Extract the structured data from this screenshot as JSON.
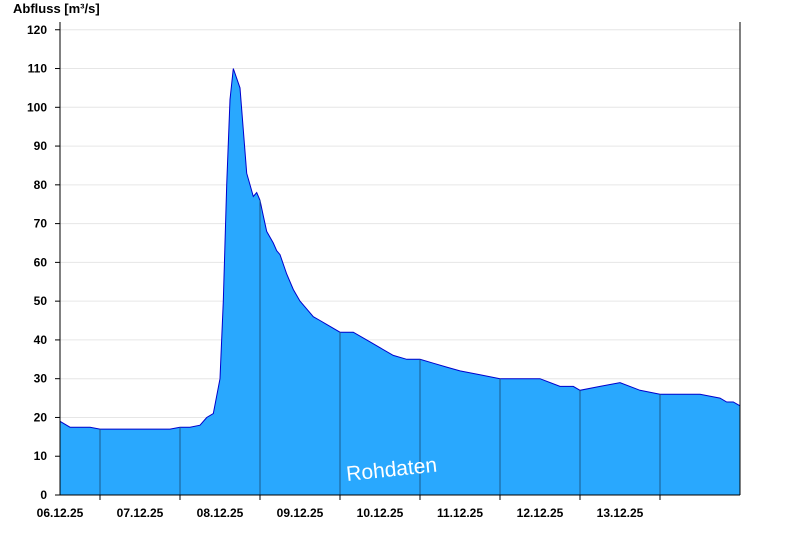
{
  "chart_data": {
    "type": "area",
    "ylabel": "Abfluss [m³/s]",
    "watermark": "Rohdaten",
    "ylim": [
      0,
      122
    ],
    "yticks": [
      0,
      10,
      20,
      30,
      40,
      50,
      60,
      70,
      80,
      90,
      100,
      110,
      120
    ],
    "xlim": [
      "05.12.25 12:00",
      "14.12.25 00:00"
    ],
    "day_boundaries": [
      "06.12.25 00:00",
      "07.12.25 00:00",
      "08.12.25 00:00",
      "09.12.25 00:00",
      "10.12.25 00:00",
      "11.12.25 00:00",
      "12.12.25 00:00",
      "13.12.25 00:00"
    ],
    "xtick_labels": [
      {
        "label": "06.12.25",
        "at": "05.12.25 12:00"
      },
      {
        "label": "07.12.25",
        "at": "06.12.25 12:00"
      },
      {
        "label": "08.12.25",
        "at": "07.12.25 12:00"
      },
      {
        "label": "09.12.25",
        "at": "08.12.25 12:00"
      },
      {
        "label": "10.12.25",
        "at": "09.12.25 12:00"
      },
      {
        "label": "11.12.25",
        "at": "10.12.25 12:00"
      },
      {
        "label": "12.12.25",
        "at": "11.12.25 12:00"
      },
      {
        "label": "13.12.25",
        "at": "12.12.25 12:00"
      }
    ],
    "grid": "horizontal",
    "colors": {
      "fill": "#29a8fe",
      "line": "#0000cc",
      "grid": "#e6e6e6",
      "axis": "#000000",
      "day_line": "#1c5a8c"
    },
    "series": [
      {
        "x": [
          "05.12.25 12:00",
          "05.12.25 15:00",
          "05.12.25 18:00",
          "05.12.25 21:00",
          "06.12.25 00:00",
          "06.12.25 03:00",
          "06.12.25 06:00",
          "06.12.25 09:00",
          "06.12.25 12:00",
          "06.12.25 15:00",
          "06.12.25 18:00",
          "06.12.25 21:00",
          "07.12.25 00:00",
          "07.12.25 03:00",
          "07.12.25 06:00",
          "07.12.25 08:00",
          "07.12.25 10:00",
          "07.12.25 12:00",
          "07.12.25 13:00",
          "07.12.25 14:00",
          "07.12.25 15:00",
          "07.12.25 16:00",
          "07.12.25 18:00",
          "07.12.25 20:00",
          "07.12.25 21:00",
          "07.12.25 22:00",
          "07.12.25 23:00",
          "08.12.25 00:00",
          "08.12.25 01:00",
          "08.12.25 02:00",
          "08.12.25 04:00",
          "08.12.25 05:00",
          "08.12.25 06:00",
          "08.12.25 08:00",
          "08.12.25 10:00",
          "08.12.25 12:00",
          "08.12.25 14:00",
          "08.12.25 16:00",
          "08.12.25 18:00",
          "08.12.25 20:00",
          "09.12.25 00:00",
          "09.12.25 04:00",
          "09.12.25 08:00",
          "09.12.25 12:00",
          "09.12.25 16:00",
          "09.12.25 20:00",
          "10.12.25 00:00",
          "10.12.25 04:00",
          "10.12.25 08:00",
          "10.12.25 12:00",
          "10.12.25 18:00",
          "11.12.25 00:00",
          "11.12.25 04:00",
          "11.12.25 08:00",
          "11.12.25 12:00",
          "11.12.25 18:00",
          "11.12.25 22:00",
          "12.12.25 00:00",
          "12.12.25 06:00",
          "12.12.25 12:00",
          "12.12.25 18:00",
          "13.12.25 00:00",
          "13.12.25 06:00",
          "13.12.25 12:00",
          "13.12.25 18:00",
          "13.12.25 20:00",
          "13.12.25 22:00",
          "14.12.25 00:00"
        ],
        "y": [
          19,
          17.5,
          17.5,
          17.5,
          17,
          17,
          17,
          17,
          17,
          17,
          17,
          17,
          17.5,
          17.5,
          18,
          20,
          21,
          30,
          50,
          80,
          102,
          110,
          105,
          83,
          80,
          77,
          78,
          76,
          72,
          68,
          65,
          63,
          62,
          57,
          53,
          50,
          48,
          46,
          45,
          44,
          42,
          42,
          40,
          38,
          36,
          35,
          35,
          34,
          33,
          32,
          31,
          30,
          30,
          30,
          30,
          28,
          28,
          27,
          28,
          29,
          27,
          26,
          26,
          26,
          25,
          24,
          24,
          23
        ]
      }
    ]
  }
}
